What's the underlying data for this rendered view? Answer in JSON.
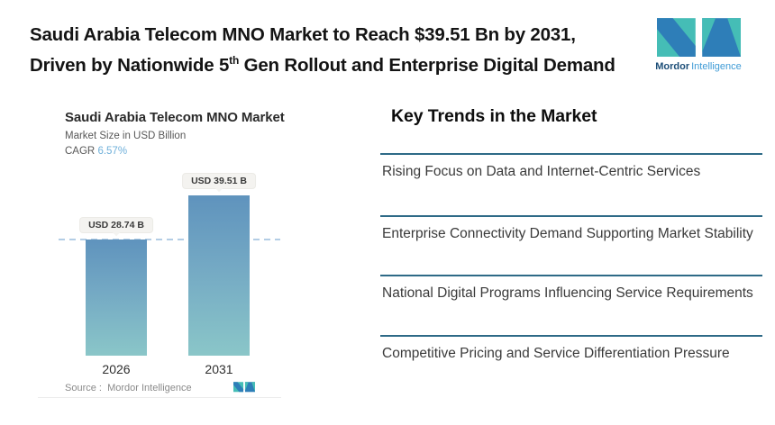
{
  "header": {
    "title_line1": "Saudi Arabia Telecom MNO Market to Reach $39.51 Bn by 2031,",
    "title_line2_pre": "Driven by Nationwide 5",
    "title_line2_sup": "th",
    "title_line2_post": " Gen Rollout and Enterprise Digital Demand"
  },
  "brand": {
    "bold": "Mordor",
    "light": "Intelligence"
  },
  "chart_data": {
    "type": "bar",
    "title": "Saudi Arabia Telecom MNO Market",
    "subtitle": "Market Size in USD Billion",
    "cagr_label": "CAGR",
    "cagr_value": "6.57%",
    "categories": [
      "2026",
      "2031"
    ],
    "values": [
      28.74,
      39.51
    ],
    "value_labels": [
      "USD 28.74 B",
      "USD 39.51 B"
    ],
    "unit": "USD Billion",
    "ylim": [
      0,
      39.51
    ],
    "grid": false,
    "reference_line_value": 28.74,
    "source_label": "Source :",
    "source_value": "Mordor Intelligence",
    "legend": "none"
  },
  "trends": {
    "heading": "Key Trends in the Market",
    "items": [
      "Rising Focus on Data and Internet-Centric Services",
      "Enterprise Connectivity Demand Supporting Market Stability",
      "National Digital Programs Influencing Service Requirements",
      "Competitive Pricing and Service Differentiation Pressure"
    ]
  },
  "colors": {
    "accent_teal": "#45bdb6",
    "accent_blue": "#2e7eb8",
    "brand_dark_text": "#1c4e78",
    "brand_light_text": "#3f9bd6",
    "bar_gradient_top": "#5f93bd",
    "bar_gradient_bottom": "#8ac6c8",
    "cagr_value_color": "#6fb0da",
    "reference_line_color": "#b3cde5",
    "trend_divider_color": "#2e6a87",
    "value_label_bg": "#f4f3f0"
  }
}
